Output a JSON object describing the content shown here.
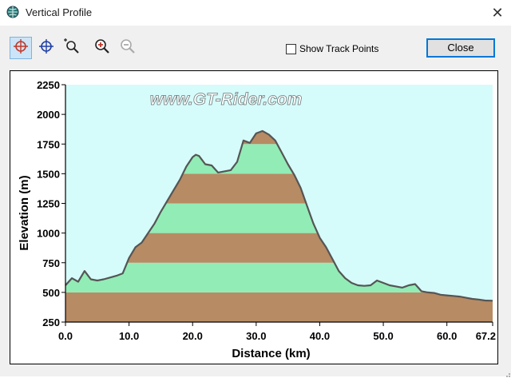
{
  "window": {
    "title": "Vertical Profile",
    "close_glyph": "✕"
  },
  "toolbar": {
    "tools": [
      {
        "name": "crosshair-red-icon",
        "active": true
      },
      {
        "name": "crosshair-blue-icon",
        "active": false
      },
      {
        "name": "zoom-region-icon",
        "active": false
      },
      {
        "name": "zoom-in-icon",
        "active": false
      },
      {
        "name": "zoom-out-icon",
        "active": false
      }
    ],
    "show_track_points_label": "Show Track Points",
    "show_track_points_checked": false,
    "close_label": "Close"
  },
  "watermark": "www.GT-Rider.com",
  "colors": {
    "plot_background": "#d6fbfb",
    "band_brown": "#b78b63",
    "band_green": "#92ecb6",
    "profile_line": "#555555"
  },
  "chart_data": {
    "type": "area",
    "title": "",
    "xlabel": "Distance   (km)",
    "ylabel": "Elevation  (m)",
    "xlim": [
      0,
      67.2
    ],
    "ylim": [
      250,
      2250
    ],
    "x_ticks": [
      "0.0",
      "10.0",
      "20.0",
      "30.0",
      "40.0",
      "50.0",
      "60.0",
      "67.2"
    ],
    "x_tick_values": [
      0,
      10,
      20,
      30,
      40,
      50,
      60,
      67.2
    ],
    "y_ticks": [
      "250",
      "500",
      "750",
      "1000",
      "1250",
      "1500",
      "1750",
      "2000",
      "2250"
    ],
    "y_tick_values": [
      250,
      500,
      750,
      1000,
      1250,
      1500,
      1750,
      2000,
      2250
    ],
    "band_step": 250,
    "grid": false,
    "series": [
      {
        "x": [
          0,
          1,
          2,
          3,
          4,
          5,
          6,
          7,
          8,
          9,
          10,
          11,
          12,
          13,
          14,
          15,
          16,
          17,
          18,
          19,
          20,
          20.5,
          21,
          22,
          23,
          24,
          25,
          26,
          27,
          28,
          29,
          30,
          31,
          32,
          33,
          34,
          35,
          36,
          37,
          38,
          39,
          40,
          41,
          42,
          43,
          44,
          45,
          46,
          47,
          48,
          49,
          50,
          51,
          52,
          53,
          54,
          55,
          56,
          57,
          58,
          59,
          60,
          61,
          62,
          63,
          64,
          65,
          66,
          67.2
        ],
        "y": [
          560,
          620,
          590,
          680,
          610,
          600,
          610,
          625,
          640,
          660,
          790,
          880,
          920,
          1000,
          1080,
          1180,
          1270,
          1360,
          1450,
          1560,
          1640,
          1660,
          1650,
          1580,
          1570,
          1510,
          1520,
          1530,
          1600,
          1780,
          1760,
          1840,
          1860,
          1830,
          1780,
          1680,
          1580,
          1490,
          1380,
          1230,
          1080,
          960,
          880,
          780,
          680,
          620,
          580,
          560,
          555,
          560,
          600,
          580,
          560,
          550,
          540,
          560,
          570,
          510,
          500,
          495,
          480,
          475,
          470,
          465,
          455,
          445,
          440,
          432,
          430
        ]
      }
    ]
  }
}
